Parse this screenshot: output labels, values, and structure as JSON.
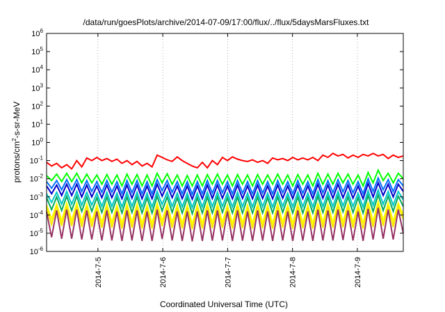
{
  "chart_data": {
    "type": "line",
    "title": "/data/run/goesPlots/archive/2014-07-09/17:00/flux/../flux/5daysMarsFluxes.txt",
    "xlabel": "Coordinated Universal Time (UTC)",
    "ylabel": "protons/cm2-s-sr-MeV",
    "ylabel_parts": {
      "base": "protons/cm",
      "sup": "2",
      "rest": "-s-sr-MeV"
    },
    "yscale": "log",
    "ylim": [
      1e-06,
      1000000.0
    ],
    "y_ticks": [
      {
        "base": "10",
        "exp": "-6",
        "value": 1e-06
      },
      {
        "base": "10",
        "exp": "-5",
        "value": 1e-05
      },
      {
        "base": "10",
        "exp": "-4",
        "value": 0.0001
      },
      {
        "base": "10",
        "exp": "-3",
        "value": 0.001
      },
      {
        "base": "10",
        "exp": "-2",
        "value": 0.01
      },
      {
        "base": "10",
        "exp": "-1",
        "value": 0.1
      },
      {
        "base": "10",
        "exp": "0",
        "value": 1
      },
      {
        "base": "10",
        "exp": "1",
        "value": 10
      },
      {
        "base": "10",
        "exp": "2",
        "value": 100
      },
      {
        "base": "10",
        "exp": "3",
        "value": 1000
      },
      {
        "base": "10",
        "exp": "4",
        "value": 10000
      },
      {
        "base": "10",
        "exp": "5",
        "value": 100000
      },
      {
        "base": "10",
        "exp": "6",
        "value": 1000000
      }
    ],
    "xlim": [
      "2014-07-04T05:00",
      "2014-07-09T17:00"
    ],
    "x_ticks": [
      {
        "label": "2014-7-5",
        "time": "2014-07-05T00:00"
      },
      {
        "label": "2014-7-6",
        "time": "2014-07-06T00:00"
      },
      {
        "label": "2014-7-7",
        "time": "2014-07-07T00:00"
      },
      {
        "label": "2014-7-8",
        "time": "2014-07-08T00:00"
      },
      {
        "label": "2014-7-9",
        "time": "2014-07-09T00:00"
      }
    ],
    "grid": true,
    "legend": "none",
    "series": [
      {
        "color": "#ff0000",
        "values": [
          0.08,
          0.05,
          0.07,
          0.04,
          0.06,
          0.035,
          0.1,
          0.045,
          0.14,
          0.1,
          0.15,
          0.1,
          0.13,
          0.09,
          0.12,
          0.07,
          0.1,
          0.06,
          0.09,
          0.05,
          0.07,
          0.045,
          0.2,
          0.15,
          0.11,
          0.09,
          0.16,
          0.1,
          0.07,
          0.05,
          0.04,
          0.08,
          0.04,
          0.1,
          0.06,
          0.15,
          0.1,
          0.16,
          0.12,
          0.1,
          0.09,
          0.11,
          0.08,
          0.1,
          0.07,
          0.14,
          0.11,
          0.13,
          0.1,
          0.15,
          0.11,
          0.14,
          0.11,
          0.15,
          0.1,
          0.2,
          0.15,
          0.25,
          0.18,
          0.22,
          0.14,
          0.2,
          0.15,
          0.22,
          0.18,
          0.25,
          0.18,
          0.22,
          0.13,
          0.2,
          0.15,
          0.18
        ]
      },
      {
        "color": "#00ff00",
        "values": [
          0.015,
          0.008,
          0.018,
          0.007,
          0.02,
          0.007,
          0.02,
          0.006,
          0.018,
          0.006,
          0.016,
          0.005,
          0.017,
          0.005,
          0.016,
          0.004,
          0.018,
          0.005,
          0.017,
          0.004,
          0.016,
          0.004,
          0.02,
          0.006,
          0.019,
          0.005,
          0.016,
          0.004,
          0.015,
          0.004,
          0.016,
          0.004,
          0.017,
          0.005,
          0.018,
          0.005,
          0.016,
          0.004,
          0.017,
          0.005,
          0.016,
          0.004,
          0.017,
          0.005,
          0.016,
          0.005,
          0.018,
          0.005,
          0.016,
          0.004,
          0.017,
          0.005,
          0.016,
          0.004,
          0.02,
          0.005,
          0.018,
          0.005,
          0.02,
          0.006,
          0.018,
          0.005,
          0.016,
          0.004,
          0.022,
          0.006,
          0.03,
          0.008,
          0.02,
          0.006,
          0.02,
          0.01
        ]
      },
      {
        "color": "#0070ff",
        "values": [
          0.007,
          0.003,
          0.008,
          0.0025,
          0.009,
          0.0025,
          0.009,
          0.002,
          0.008,
          0.002,
          0.007,
          0.0018,
          0.008,
          0.0018,
          0.007,
          0.0015,
          0.008,
          0.0017,
          0.008,
          0.0015,
          0.007,
          0.0015,
          0.009,
          0.0022,
          0.008,
          0.0018,
          0.007,
          0.0015,
          0.007,
          0.0014,
          0.007,
          0.0015,
          0.008,
          0.0016,
          0.008,
          0.0017,
          0.007,
          0.0015,
          0.008,
          0.0016,
          0.007,
          0.0015,
          0.008,
          0.0016,
          0.007,
          0.0015,
          0.008,
          0.0017,
          0.007,
          0.0015,
          0.008,
          0.0016,
          0.007,
          0.0015,
          0.009,
          0.0017,
          0.008,
          0.0017,
          0.009,
          0.0019,
          0.008,
          0.0017,
          0.007,
          0.0015,
          0.01,
          0.002,
          0.011,
          0.0025,
          0.009,
          0.002,
          0.009,
          0.004
        ]
      },
      {
        "color": "#0000c8",
        "values": [
          0.004,
          0.0015,
          0.0045,
          0.0012,
          0.005,
          0.0012,
          0.005,
          0.001,
          0.0045,
          0.001,
          0.004,
          0.0009,
          0.0045,
          0.0009,
          0.004,
          0.0008,
          0.0045,
          0.00085,
          0.0045,
          0.0008,
          0.004,
          0.0008,
          0.005,
          0.0011,
          0.0045,
          0.0009,
          0.004,
          0.0008,
          0.004,
          0.00075,
          0.004,
          0.0008,
          0.0045,
          0.00082,
          0.0045,
          0.00085,
          0.004,
          0.0008,
          0.0045,
          0.00082,
          0.004,
          0.0008,
          0.0045,
          0.00082,
          0.004,
          0.0008,
          0.0045,
          0.00085,
          0.004,
          0.0008,
          0.0045,
          0.00082,
          0.004,
          0.0008,
          0.005,
          0.00085,
          0.0045,
          0.00085,
          0.005,
          0.0009,
          0.0045,
          0.00085,
          0.004,
          0.0008,
          0.0055,
          0.001,
          0.006,
          0.0012,
          0.005,
          0.001,
          0.005,
          0.002
        ]
      },
      {
        "color": "#00c8c8",
        "values": [
          0.0015,
          0.0005,
          0.0018,
          0.0004,
          0.002,
          0.0004,
          0.002,
          0.00035,
          0.0018,
          0.00035,
          0.0016,
          0.0003,
          0.0018,
          0.0003,
          0.0016,
          0.00028,
          0.0018,
          0.0003,
          0.0018,
          0.00028,
          0.0016,
          0.00028,
          0.002,
          0.00038,
          0.0018,
          0.0003,
          0.0016,
          0.00028,
          0.0016,
          0.00026,
          0.0016,
          0.00028,
          0.0018,
          0.00029,
          0.0018,
          0.0003,
          0.0016,
          0.00028,
          0.0018,
          0.00029,
          0.0016,
          0.00028,
          0.0018,
          0.00029,
          0.0016,
          0.00028,
          0.0018,
          0.0003,
          0.0016,
          0.00028,
          0.0018,
          0.00029,
          0.0016,
          0.00028,
          0.002,
          0.0003,
          0.0018,
          0.0003,
          0.002,
          0.00032,
          0.0018,
          0.0003,
          0.0016,
          0.00028,
          0.0022,
          0.00035,
          0.0024,
          0.0004,
          0.002,
          0.00035,
          0.002,
          0.0007
        ]
      },
      {
        "color": "#00aa5a",
        "values": [
          0.0009,
          0.0002,
          0.001,
          0.00018,
          0.0011,
          0.00018,
          0.0011,
          0.00016,
          0.001,
          0.00016,
          0.0009,
          0.00014,
          0.001,
          0.00014,
          0.0009,
          0.00013,
          0.001,
          0.00014,
          0.001,
          0.00013,
          0.0009,
          0.00013,
          0.0011,
          0.00017,
          0.001,
          0.00014,
          0.0009,
          0.00013,
          0.0009,
          0.00012,
          0.0009,
          0.00013,
          0.001,
          0.00013,
          0.001,
          0.00014,
          0.0009,
          0.00013,
          0.001,
          0.00013,
          0.0009,
          0.00013,
          0.001,
          0.00013,
          0.0009,
          0.00013,
          0.001,
          0.00014,
          0.0009,
          0.00013,
          0.001,
          0.00013,
          0.0009,
          0.00013,
          0.0011,
          0.00014,
          0.001,
          0.00014,
          0.0011,
          0.00015,
          0.001,
          0.00014,
          0.0009,
          0.00013,
          0.0012,
          0.00016,
          0.0013,
          0.00018,
          0.0011,
          0.00016,
          0.0011,
          0.0003
        ]
      },
      {
        "color": "#ffff00",
        "values": [
          0.00035,
          6e-05,
          0.0004,
          5e-05,
          0.00045,
          5e-05,
          0.00045,
          4.5e-05,
          0.0004,
          4.5e-05,
          0.00035,
          4e-05,
          0.0004,
          4e-05,
          0.00035,
          3.5e-05,
          0.0004,
          4e-05,
          0.0004,
          3.5e-05,
          0.00035,
          3.5e-05,
          0.00045,
          4.8e-05,
          0.0004,
          4e-05,
          0.00035,
          3.5e-05,
          0.00035,
          3.3e-05,
          0.00035,
          3.5e-05,
          0.0004,
          3.7e-05,
          0.0004,
          4e-05,
          0.00035,
          3.5e-05,
          0.0004,
          3.7e-05,
          0.00035,
          3.5e-05,
          0.0004,
          3.7e-05,
          0.00035,
          3.5e-05,
          0.0004,
          4e-05,
          0.00035,
          3.5e-05,
          0.0004,
          3.7e-05,
          0.00035,
          3.5e-05,
          0.00045,
          4e-05,
          0.0004,
          4e-05,
          0.00045,
          4.2e-05,
          0.0004,
          4e-05,
          0.00035,
          3.5e-05,
          0.0005,
          4.5e-05,
          0.00055,
          5e-05,
          0.00045,
          4.5e-05,
          0.00045,
          0.0001
        ]
      },
      {
        "color": "#fae600",
        "values": [
          0.00025,
          3e-05,
          0.0003,
          2.5e-05,
          0.00032,
          2.5e-05,
          0.00032,
          2.2e-05,
          0.0003,
          2.2e-05,
          0.00026,
          2e-05,
          0.0003,
          2e-05,
          0.00026,
          1.8e-05,
          0.0003,
          2e-05,
          0.0003,
          1.8e-05,
          0.00026,
          1.8e-05,
          0.00032,
          2.4e-05,
          0.0003,
          2e-05,
          0.00026,
          1.8e-05,
          0.00026,
          1.7e-05,
          0.00026,
          1.8e-05,
          0.0003,
          1.9e-05,
          0.0003,
          2e-05,
          0.00026,
          1.8e-05,
          0.0003,
          1.9e-05,
          0.00026,
          1.8e-05,
          0.0003,
          1.9e-05,
          0.00026,
          1.8e-05,
          0.0003,
          2e-05,
          0.00026,
          1.8e-05,
          0.0003,
          1.9e-05,
          0.00026,
          1.8e-05,
          0.00032,
          2e-05,
          0.0003,
          2e-05,
          0.00032,
          2.1e-05,
          0.0003,
          2e-05,
          0.00026,
          1.8e-05,
          0.00035,
          2.2e-05,
          0.0004,
          2.5e-05,
          0.00032,
          2.2e-05,
          0.00032,
          6e-05
        ]
      },
      {
        "color": "#963264",
        "values": [
          0.00015,
          6e-06,
          0.00018,
          5e-06,
          0.0002,
          5e-06,
          0.0002,
          4.5e-06,
          0.00018,
          4.5e-06,
          0.00016,
          4e-06,
          0.00018,
          4e-06,
          0.00016,
          3.8e-06,
          0.00018,
          4e-06,
          0.00018,
          3.8e-06,
          0.00016,
          3.8e-06,
          0.0002,
          4.8e-06,
          0.00018,
          4e-06,
          0.00016,
          3.8e-06,
          0.00016,
          3.6e-06,
          0.00016,
          3.8e-06,
          0.00018,
          3.9e-06,
          0.00018,
          4e-06,
          0.00016,
          3.8e-06,
          0.00018,
          3.9e-06,
          0.00016,
          3.8e-06,
          0.00018,
          3.9e-06,
          0.00016,
          3.8e-06,
          0.00018,
          4e-06,
          0.00016,
          3.8e-06,
          0.00018,
          3.9e-06,
          0.00016,
          3.8e-06,
          0.0002,
          4e-06,
          0.00018,
          4e-06,
          0.0002,
          4.2e-06,
          0.00018,
          4e-06,
          0.00016,
          3.8e-06,
          0.00022,
          4.5e-06,
          0.00025,
          5e-06,
          0.0002,
          4.5e-06,
          0.0002,
          1e-05
        ]
      }
    ]
  }
}
